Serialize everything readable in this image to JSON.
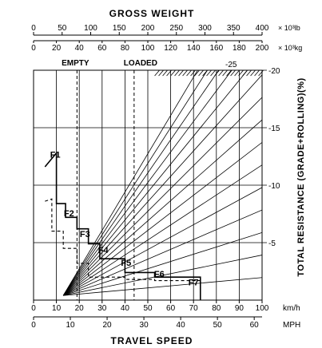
{
  "chart_data": {
    "type": "line",
    "title": "GROSS WEIGHT",
    "top_axis_lb": {
      "unit": "× 10³lb",
      "ticks": [
        0,
        50,
        100,
        150,
        200,
        250,
        300,
        350,
        400
      ],
      "labels": [
        "0",
        "50",
        "100",
        "150",
        "200",
        "250",
        "300",
        "350",
        "400"
      ]
    },
    "top_axis_kg": {
      "unit": "× 10³kg",
      "ticks": [
        0,
        20,
        40,
        60,
        80,
        100,
        120,
        140,
        160,
        180,
        200
      ],
      "labels": [
        "0",
        "20",
        "40",
        "60",
        "80",
        "100",
        "120",
        "140",
        "160",
        "180",
        "200"
      ]
    },
    "weight_markers": [
      {
        "label": "EMPTY",
        "kg": 38
      },
      {
        "label": "LOADED",
        "kg": 88
      }
    ],
    "xlabel": "TRAVEL SPEED",
    "x_kmh": {
      "unit": "km/h",
      "ticks": [
        0,
        10,
        20,
        30,
        40,
        50,
        60,
        70,
        80,
        90,
        100
      ],
      "labels": [
        "0",
        "10",
        "20",
        "30",
        "40",
        "50",
        "60",
        "70",
        "80",
        "90",
        "100"
      ]
    },
    "x_mph": {
      "unit": "MPH",
      "ticks": [
        0,
        10,
        20,
        30,
        40,
        50,
        60
      ],
      "labels": [
        "0",
        "10",
        "20",
        "30",
        "40",
        "50",
        "60"
      ]
    },
    "ylabel": "TOTAL RESISTANCE (GRADE+ROLLING)(%)",
    "y_right": {
      "ticks": [
        -5,
        -10,
        -15,
        -20
      ],
      "labels": [
        "-5",
        "-10",
        "-15",
        "-20"
      ],
      "top_label": "-25"
    },
    "grid": true,
    "resistance_lines_pct": [
      2,
      4,
      6,
      8,
      10,
      12,
      14,
      16,
      18,
      20,
      22,
      24,
      26,
      28,
      30
    ],
    "gear_labels": [
      {
        "name": "F1",
        "x_kmh": 9.5,
        "level": 0.62
      },
      {
        "name": "F2",
        "x_kmh": 15.5,
        "level": 0.365
      },
      {
        "name": "F3",
        "x_kmh": 22.5,
        "level": 0.275
      },
      {
        "name": "F4",
        "x_kmh": 30.5,
        "level": 0.205
      },
      {
        "name": "F5",
        "x_kmh": 40.5,
        "level": 0.15
      },
      {
        "name": "F6",
        "x_kmh": 55,
        "level": 0.1
      },
      {
        "name": "F7",
        "x_kmh": 70,
        "level": 0.065
      }
    ],
    "series": [
      {
        "name": "LOADED",
        "style": "solid",
        "points": [
          [
            5,
            0.58
          ],
          [
            10,
            0.64
          ],
          [
            10,
            0.42
          ],
          [
            14,
            0.42
          ],
          [
            14,
            0.36
          ],
          [
            19,
            0.36
          ],
          [
            19,
            0.31
          ],
          [
            24,
            0.31
          ],
          [
            24,
            0.245
          ],
          [
            29,
            0.245
          ],
          [
            29,
            0.18
          ],
          [
            40,
            0.18
          ],
          [
            40,
            0.12
          ],
          [
            53,
            0.12
          ],
          [
            53,
            0.1
          ],
          [
            73,
            0.1
          ],
          [
            73,
            0
          ]
        ]
      },
      {
        "name": "EMPTY",
        "style": "dashed",
        "points": [
          [
            5,
            0.43
          ],
          [
            8,
            0.44
          ],
          [
            8,
            0.3
          ],
          [
            13,
            0.3
          ],
          [
            13,
            0.225
          ],
          [
            19,
            0.225
          ],
          [
            19,
            0.16
          ],
          [
            24,
            0.16
          ],
          [
            24,
            0.1
          ],
          [
            40,
            0.1
          ],
          [
            40,
            0.09
          ],
          [
            53,
            0.09
          ],
          [
            53,
            0.085
          ],
          [
            73,
            0.085
          ],
          [
            73,
            0
          ]
        ]
      }
    ]
  }
}
